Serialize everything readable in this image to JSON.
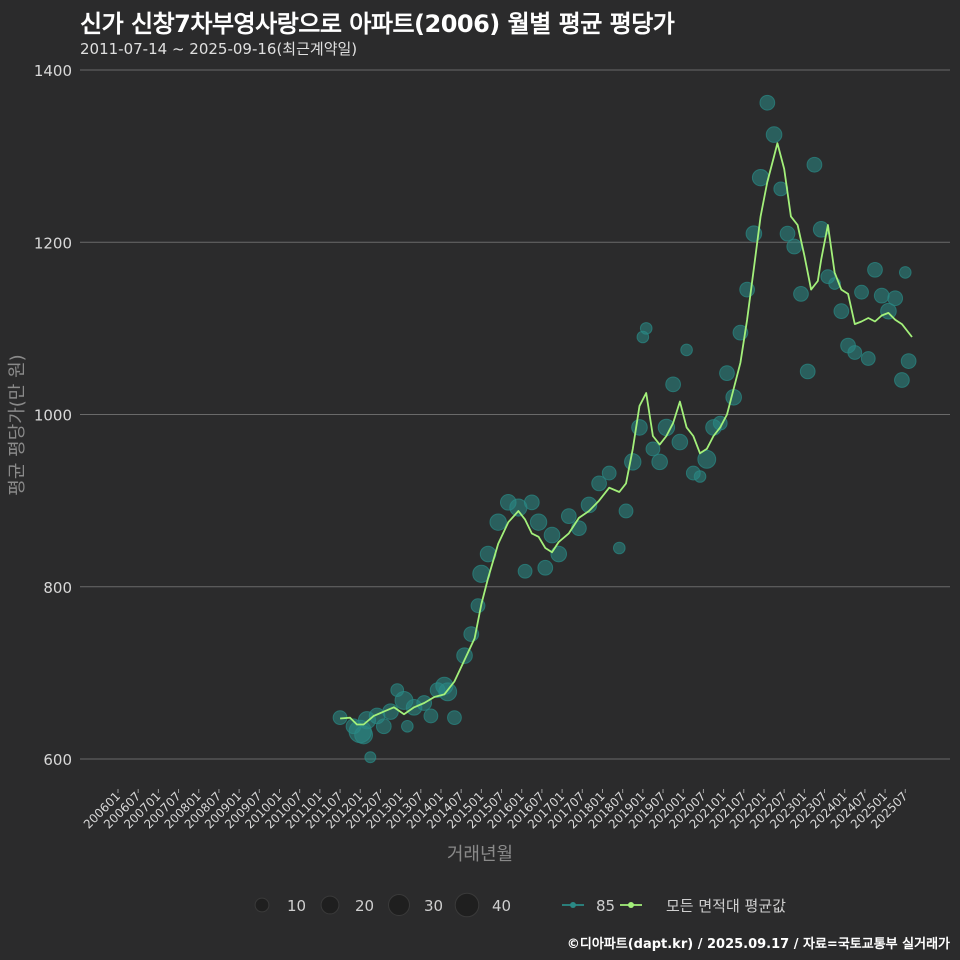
{
  "header": {
    "title": "신가 신창7차부영사랑으로 아파트(2006) 월별 평균 평당가",
    "subtitle": "2011-07-14 ~ 2025-09-16(최근계약일)"
  },
  "footer": {
    "credit": "©디아파트(dapt.kr) / 2025.09.17 / 자료=국토교통부 실거래가"
  },
  "colors": {
    "background": "#2b2b2c",
    "grid": "#6a6a6a",
    "series85": "#2a8a86",
    "avgLine": "#a3f07a",
    "text": "#d8d8d8"
  },
  "chart_data": {
    "type": "line",
    "title": "신가 신창7차부영사랑으로 아파트(2006) 월별 평균 평당가",
    "xlabel": "거래년월",
    "ylabel": "평균 평당가(만 원)",
    "ylim": [
      570,
      1400
    ],
    "yticks": [
      600,
      800,
      1000,
      1200,
      1400
    ],
    "x_start": "2006-01",
    "x_end": "2025-09",
    "xticks": [
      "200601",
      "200607",
      "200701",
      "200707",
      "200801",
      "200807",
      "200901",
      "200907",
      "201001",
      "201007",
      "201101",
      "201107",
      "201201",
      "201207",
      "201301",
      "201307",
      "201401",
      "201407",
      "201501",
      "201507",
      "201601",
      "201607",
      "201701",
      "201707",
      "201801",
      "201807",
      "201901",
      "201907",
      "202001",
      "202007",
      "202101",
      "202107",
      "202201",
      "202207",
      "202301",
      "202307",
      "202401",
      "202407",
      "202501",
      "202507"
    ],
    "grid": true,
    "legend": {
      "size_title": "",
      "sizes": [
        {
          "label": "10",
          "value": 10
        },
        {
          "label": "20",
          "value": 20
        },
        {
          "label": "30",
          "value": 30
        },
        {
          "label": "40",
          "value": 40
        }
      ],
      "series": [
        {
          "label": "85"
        },
        {
          "label": "모든 면적대 평균값"
        }
      ],
      "position": "bottom"
    },
    "series": [
      {
        "name": "모든 면적대 평균값",
        "points": [
          [
            "2011-07",
            647
          ],
          [
            "2011-10",
            648
          ],
          [
            "2011-12",
            640
          ],
          [
            "2012-02",
            640
          ],
          [
            "2012-05",
            650
          ],
          [
            "2012-08",
            655
          ],
          [
            "2012-11",
            660
          ],
          [
            "2013-02",
            652
          ],
          [
            "2013-05",
            660
          ],
          [
            "2013-08",
            665
          ],
          [
            "2013-11",
            672
          ],
          [
            "2014-02",
            675
          ],
          [
            "2014-05",
            690
          ],
          [
            "2014-08",
            715
          ],
          [
            "2014-11",
            740
          ],
          [
            "2015-01",
            780
          ],
          [
            "2015-03",
            810
          ],
          [
            "2015-06",
            850
          ],
          [
            "2015-09",
            875
          ],
          [
            "2015-12",
            888
          ],
          [
            "2016-02",
            878
          ],
          [
            "2016-04",
            862
          ],
          [
            "2016-06",
            858
          ],
          [
            "2016-08",
            845
          ],
          [
            "2016-10",
            840
          ],
          [
            "2016-12",
            852
          ],
          [
            "2017-03",
            862
          ],
          [
            "2017-06",
            880
          ],
          [
            "2017-09",
            888
          ],
          [
            "2017-12",
            900
          ],
          [
            "2018-03",
            915
          ],
          [
            "2018-06",
            910
          ],
          [
            "2018-08",
            920
          ],
          [
            "2018-10",
            960
          ],
          [
            "2018-12",
            1010
          ],
          [
            "2019-02",
            1025
          ],
          [
            "2019-04",
            975
          ],
          [
            "2019-06",
            965
          ],
          [
            "2019-08",
            975
          ],
          [
            "2019-10",
            990
          ],
          [
            "2019-12",
            1015
          ],
          [
            "2020-02",
            985
          ],
          [
            "2020-04",
            975
          ],
          [
            "2020-06",
            955
          ],
          [
            "2020-08",
            960
          ],
          [
            "2020-10",
            975
          ],
          [
            "2020-12",
            985
          ],
          [
            "2021-02",
            1000
          ],
          [
            "2021-04",
            1030
          ],
          [
            "2021-06",
            1060
          ],
          [
            "2021-08",
            1110
          ],
          [
            "2021-10",
            1170
          ],
          [
            "2021-12",
            1230
          ],
          [
            "2022-02",
            1270
          ],
          [
            "2022-04",
            1300
          ],
          [
            "2022-05",
            1315
          ],
          [
            "2022-07",
            1285
          ],
          [
            "2022-09",
            1230
          ],
          [
            "2022-11",
            1220
          ],
          [
            "2023-01",
            1185
          ],
          [
            "2023-03",
            1145
          ],
          [
            "2023-05",
            1155
          ],
          [
            "2023-06",
            1180
          ],
          [
            "2023-08",
            1220
          ],
          [
            "2023-10",
            1165
          ],
          [
            "2023-12",
            1145
          ],
          [
            "2024-02",
            1140
          ],
          [
            "2024-04",
            1105
          ],
          [
            "2024-06",
            1108
          ],
          [
            "2024-08",
            1112
          ],
          [
            "2024-10",
            1108
          ],
          [
            "2024-12",
            1115
          ],
          [
            "2025-02",
            1118
          ],
          [
            "2025-04",
            1110
          ],
          [
            "2025-06",
            1105
          ],
          [
            "2025-09",
            1090
          ]
        ]
      },
      {
        "name": "85",
        "bubbles": [
          [
            "2011-07",
            648,
            10
          ],
          [
            "2011-11",
            638,
            12
          ],
          [
            "2012-01",
            632,
            35
          ],
          [
            "2012-02",
            628,
            20
          ],
          [
            "2012-03",
            645,
            18
          ],
          [
            "2012-04",
            602,
            5
          ],
          [
            "2012-06",
            650,
            14
          ],
          [
            "2012-08",
            638,
            12
          ],
          [
            "2012-10",
            655,
            14
          ],
          [
            "2012-12",
            680,
            8
          ],
          [
            "2013-02",
            668,
            20
          ],
          [
            "2013-03",
            638,
            6
          ],
          [
            "2013-05",
            660,
            14
          ],
          [
            "2013-08",
            665,
            12
          ],
          [
            "2013-10",
            650,
            10
          ],
          [
            "2013-12",
            680,
            12
          ],
          [
            "2014-02",
            685,
            18
          ],
          [
            "2014-03",
            678,
            20
          ],
          [
            "2014-05",
            648,
            10
          ],
          [
            "2014-08",
            720,
            14
          ],
          [
            "2014-10",
            745,
            12
          ],
          [
            "2014-12",
            778,
            10
          ],
          [
            "2015-01",
            815,
            18
          ],
          [
            "2015-03",
            838,
            14
          ],
          [
            "2015-06",
            875,
            16
          ],
          [
            "2015-09",
            898,
            14
          ],
          [
            "2015-12",
            892,
            18
          ],
          [
            "2016-02",
            818,
            10
          ],
          [
            "2016-04",
            898,
            12
          ],
          [
            "2016-06",
            875,
            16
          ],
          [
            "2016-08",
            822,
            12
          ],
          [
            "2016-10",
            860,
            14
          ],
          [
            "2016-12",
            838,
            14
          ],
          [
            "2017-03",
            882,
            12
          ],
          [
            "2017-06",
            868,
            12
          ],
          [
            "2017-09",
            895,
            14
          ],
          [
            "2017-12",
            920,
            12
          ],
          [
            "2018-03",
            932,
            10
          ],
          [
            "2018-06",
            845,
            6
          ],
          [
            "2018-08",
            888,
            10
          ],
          [
            "2018-10",
            945,
            16
          ],
          [
            "2018-12",
            985,
            14
          ],
          [
            "2019-01",
            1090,
            6
          ],
          [
            "2019-02",
            1100,
            6
          ],
          [
            "2019-04",
            960,
            10
          ],
          [
            "2019-06",
            945,
            14
          ],
          [
            "2019-08",
            985,
            16
          ],
          [
            "2019-10",
            1035,
            12
          ],
          [
            "2019-12",
            968,
            14
          ],
          [
            "2020-02",
            1075,
            6
          ],
          [
            "2020-04",
            932,
            10
          ],
          [
            "2020-06",
            928,
            6
          ],
          [
            "2020-08",
            948,
            20
          ],
          [
            "2020-10",
            985,
            14
          ],
          [
            "2020-12",
            990,
            10
          ],
          [
            "2021-02",
            1048,
            12
          ],
          [
            "2021-04",
            1020,
            14
          ],
          [
            "2021-06",
            1095,
            12
          ],
          [
            "2021-08",
            1145,
            12
          ],
          [
            "2021-10",
            1210,
            14
          ],
          [
            "2021-12",
            1275,
            16
          ],
          [
            "2022-02",
            1362,
            12
          ],
          [
            "2022-04",
            1325,
            14
          ],
          [
            "2022-06",
            1262,
            10
          ],
          [
            "2022-08",
            1210,
            12
          ],
          [
            "2022-10",
            1195,
            12
          ],
          [
            "2022-12",
            1140,
            12
          ],
          [
            "2023-02",
            1050,
            12
          ],
          [
            "2023-04",
            1290,
            12
          ],
          [
            "2023-06",
            1215,
            14
          ],
          [
            "2023-08",
            1160,
            10
          ],
          [
            "2023-10",
            1152,
            6
          ],
          [
            "2023-12",
            1120,
            12
          ],
          [
            "2024-02",
            1080,
            12
          ],
          [
            "2024-04",
            1072,
            10
          ],
          [
            "2024-06",
            1142,
            10
          ],
          [
            "2024-08",
            1065,
            10
          ],
          [
            "2024-10",
            1168,
            12
          ],
          [
            "2024-12",
            1138,
            12
          ],
          [
            "2025-02",
            1120,
            14
          ],
          [
            "2025-04",
            1135,
            12
          ],
          [
            "2025-06",
            1040,
            12
          ],
          [
            "2025-07",
            1165,
            6
          ],
          [
            "2025-08",
            1062,
            12
          ]
        ]
      }
    ]
  }
}
